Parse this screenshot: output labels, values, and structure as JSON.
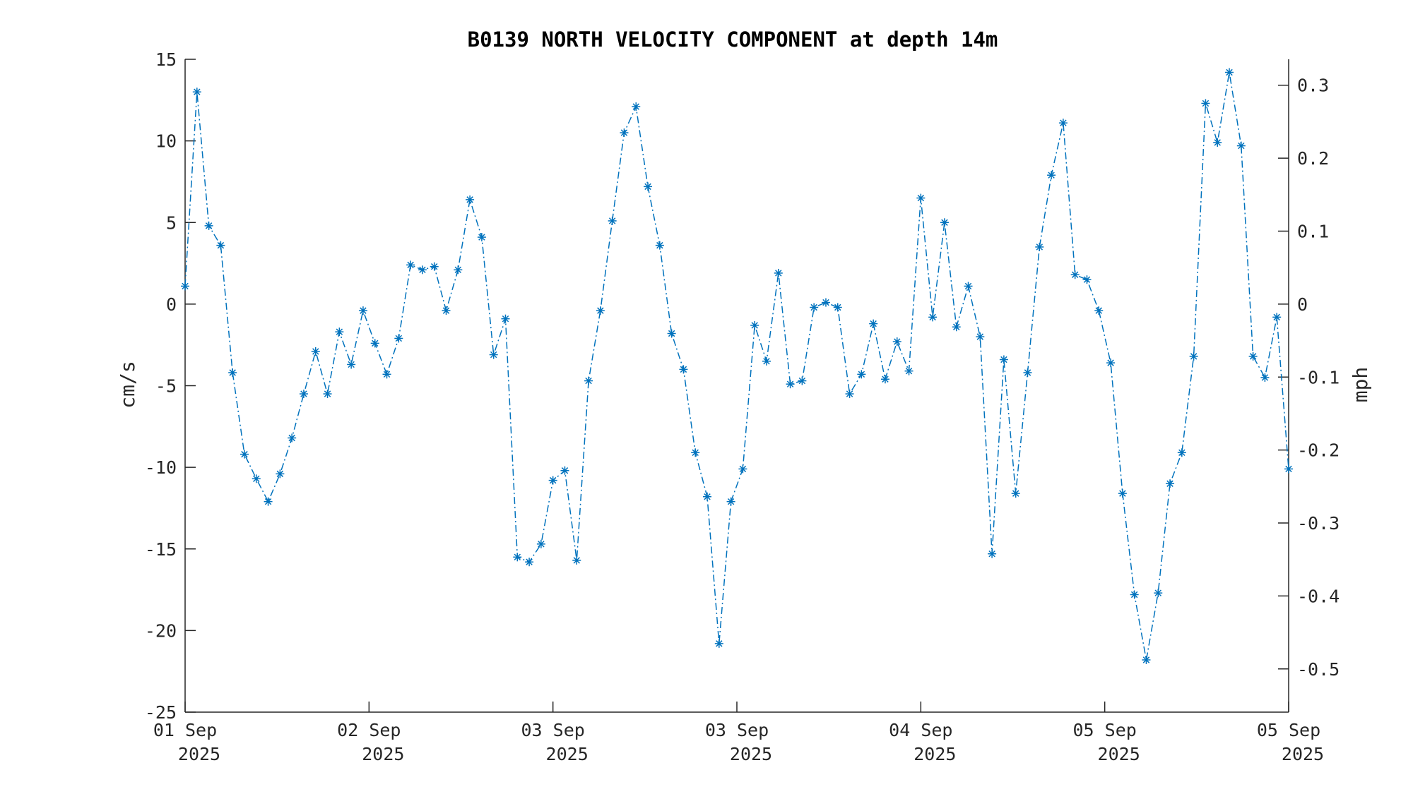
{
  "chart_data": {
    "type": "line",
    "title": "B0139 NORTH VELOCITY COMPONENT at depth 14m",
    "ylabel": "cm/s",
    "y2label": "mph",
    "ylim": [
      -25,
      15
    ],
    "yticks": [
      "15",
      "10",
      "5",
      "0",
      "-5",
      "-10",
      "-15",
      "-20",
      "-25"
    ],
    "y2ticks": [
      "0.3",
      "0.2",
      "0.1",
      "0",
      "-0.1",
      "-0.2",
      "-0.3",
      "-0.4",
      "-0.5"
    ],
    "xlim": [
      "2025-09-01 00:00",
      "2025-09-05 24:00"
    ],
    "xtick_labels": [
      {
        "day": "01 Sep",
        "year": "2025"
      },
      {
        "day": "02 Sep",
        "year": "2025"
      },
      {
        "day": "03 Sep",
        "year": "2025"
      },
      {
        "day": "03 Sep",
        "year": "2025"
      },
      {
        "day": "04 Sep",
        "year": "2025"
      },
      {
        "day": "05 Sep",
        "year": "2025"
      },
      {
        "day": "05 Sep",
        "year": "2025"
      }
    ],
    "grid": false,
    "series": [
      {
        "color": "#0072BD",
        "line_style": "dash-dot",
        "marker": "asterisk",
        "values": [
          1.1,
          13.0,
          4.8,
          3.6,
          -4.2,
          -9.2,
          -10.7,
          -12.1,
          -10.4,
          -8.2,
          -5.5,
          -2.9,
          -5.5,
          -1.7,
          -3.7,
          -0.4,
          -2.4,
          -4.3,
          -2.1,
          2.4,
          2.1,
          2.3,
          -0.4,
          2.1,
          6.4,
          4.1,
          -3.1,
          -0.9,
          -15.5,
          -15.8,
          -14.7,
          -10.8,
          -10.2,
          -15.7,
          -4.7,
          -0.4,
          5.1,
          10.5,
          12.1,
          7.2,
          3.6,
          -1.8,
          -4.0,
          -9.1,
          -11.8,
          -20.8,
          -12.1,
          -10.1,
          -1.3,
          -3.5,
          1.9,
          -4.9,
          -4.7,
          -0.2,
          0.1,
          -0.2,
          -5.5,
          -4.3,
          -1.2,
          -4.6,
          -2.3,
          -4.1,
          6.5,
          -0.8,
          5.0,
          -1.4,
          1.1,
          -2.0,
          -15.3,
          -3.4,
          -11.6,
          -4.2,
          3.5,
          7.9,
          11.1,
          1.8,
          1.5,
          -0.4,
          -3.6,
          -11.6,
          -17.8,
          -21.8,
          -17.7,
          -11.0,
          -9.1,
          -3.2,
          12.3,
          9.9,
          14.2,
          9.7,
          -3.2,
          -4.5,
          -0.8,
          -10.1
        ]
      }
    ]
  }
}
